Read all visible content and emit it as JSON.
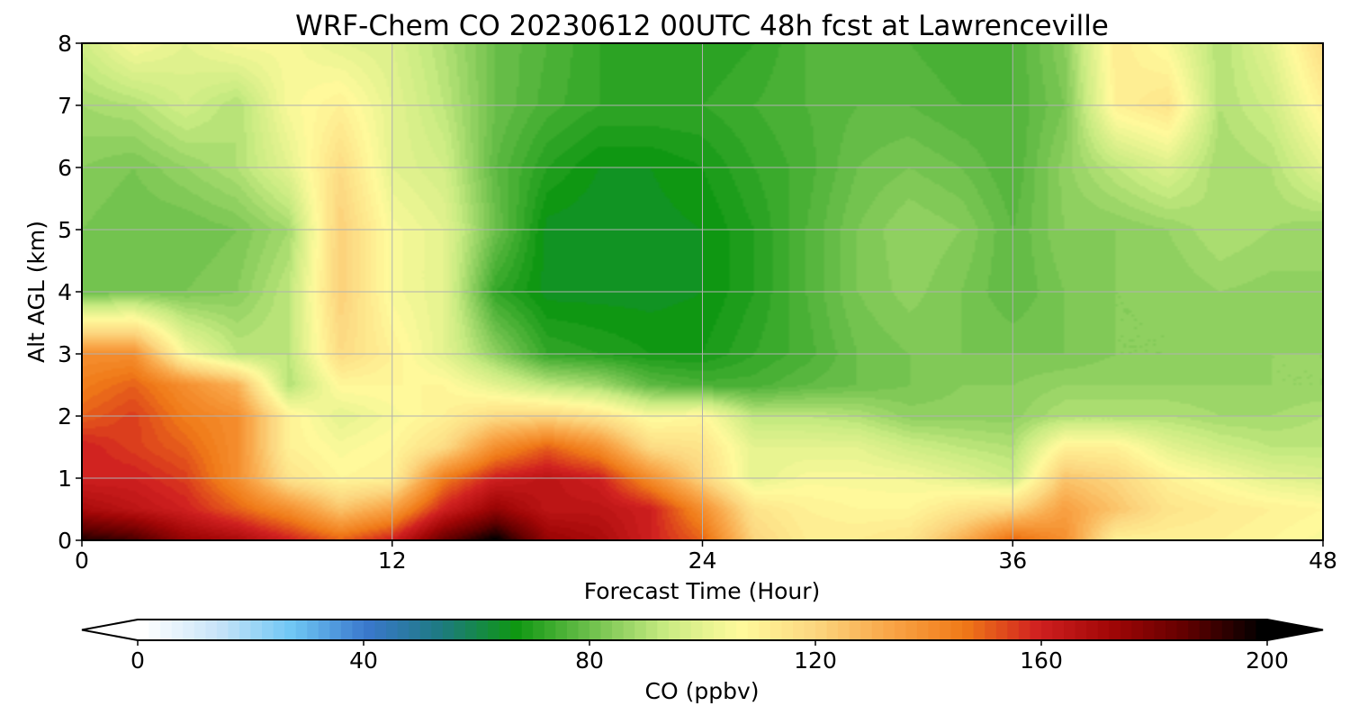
{
  "chart_data": {
    "type": "heatmap",
    "title": "WRF-Chem CO  20230612 00UTC 48h fcst at Lawrenceville",
    "xlabel": "Forecast Time (Hour)",
    "ylabel": "Alt AGL (km)",
    "xlim": [
      0,
      48
    ],
    "ylim": [
      0,
      8
    ],
    "xticks": [
      0,
      12,
      24,
      36,
      48
    ],
    "yticks": [
      0,
      1,
      2,
      3,
      4,
      5,
      6,
      7,
      8
    ],
    "grid": true,
    "x_hours": [
      0,
      2,
      4,
      6,
      8,
      10,
      12,
      14,
      16,
      18,
      20,
      22,
      24,
      26,
      28,
      30,
      32,
      34,
      36,
      38,
      40,
      42,
      44,
      46,
      48
    ],
    "y_km": [
      0,
      0.5,
      1,
      1.5,
      2,
      2.5,
      3,
      4,
      5,
      6,
      7,
      8
    ],
    "values_ppbv": [
      [
        195,
        190,
        175,
        170,
        160,
        150,
        160,
        185,
        200,
        175,
        170,
        160,
        150,
        120,
        112,
        112,
        115,
        130,
        150,
        140,
        110,
        110,
        110,
        108,
        105
      ],
      [
        170,
        165,
        160,
        150,
        140,
        125,
        135,
        160,
        175,
        165,
        165,
        160,
        140,
        115,
        110,
        108,
        108,
        115,
        120,
        135,
        125,
        115,
        112,
        110,
        108
      ],
      [
        160,
        160,
        155,
        140,
        115,
        108,
        110,
        145,
        160,
        165,
        160,
        140,
        120,
        100,
        105,
        105,
        104,
        100,
        95,
        125,
        120,
        110,
        105,
        100,
        98
      ],
      [
        160,
        155,
        150,
        140,
        110,
        105,
        108,
        118,
        140,
        150,
        140,
        118,
        115,
        100,
        100,
        100,
        95,
        92,
        90,
        110,
        110,
        100,
        95,
        92,
        92
      ],
      [
        150,
        155,
        145,
        140,
        110,
        100,
        105,
        110,
        118,
        120,
        115,
        105,
        108,
        92,
        92,
        90,
        85,
        85,
        85,
        90,
        90,
        90,
        88,
        88,
        90
      ],
      [
        145,
        150,
        140,
        130,
        90,
        108,
        108,
        108,
        100,
        92,
        88,
        78,
        75,
        75,
        78,
        80,
        82,
        84,
        84,
        86,
        86,
        86,
        86,
        86,
        86
      ],
      [
        140,
        140,
        105,
        92,
        92,
        118,
        110,
        100,
        85,
        72,
        70,
        68,
        68,
        72,
        75,
        80,
        82,
        82,
        82,
        82,
        84,
        84,
        84,
        86,
        86
      ],
      [
        80,
        82,
        82,
        84,
        92,
        122,
        105,
        100,
        72,
        65,
        65,
        65,
        66,
        70,
        76,
        82,
        85,
        82,
        78,
        82,
        84,
        84,
        86,
        85,
        86
      ],
      [
        82,
        80,
        80,
        82,
        88,
        122,
        105,
        100,
        80,
        65,
        64,
        65,
        66,
        70,
        76,
        82,
        86,
        84,
        78,
        84,
        84,
        86,
        90,
        88,
        86
      ],
      [
        84,
        82,
        86,
        90,
        100,
        118,
        100,
        96,
        78,
        70,
        66,
        66,
        68,
        72,
        75,
        80,
        82,
        80,
        76,
        85,
        92,
        98,
        88,
        90,
        100
      ],
      [
        88,
        90,
        96,
        90,
        105,
        110,
        100,
        92,
        80,
        75,
        72,
        72,
        72,
        74,
        76,
        78,
        78,
        76,
        76,
        82,
        110,
        115,
        90,
        95,
        110
      ],
      [
        95,
        105,
        100,
        105,
        105,
        100,
        98,
        90,
        80,
        76,
        72,
        70,
        70,
        72,
        76,
        76,
        76,
        74,
        76,
        84,
        112,
        105,
        90,
        100,
        118
      ]
    ],
    "colorbar": {
      "label": "CO  (ppbv)",
      "min": 0,
      "max": 200,
      "ticks": [
        0,
        40,
        80,
        120,
        160,
        200
      ],
      "extend": "both",
      "colors": [
        "#ffffff",
        "#c8e4f8",
        "#6ec6f4",
        "#3a78cc",
        "#1d7a80",
        "#0f9712",
        "#6ec04c",
        "#c8eb82",
        "#fffa9c",
        "#fcd780",
        "#f9a648",
        "#f07a18",
        "#d02020",
        "#a00606",
        "#600000",
        "#000000"
      ]
    }
  }
}
